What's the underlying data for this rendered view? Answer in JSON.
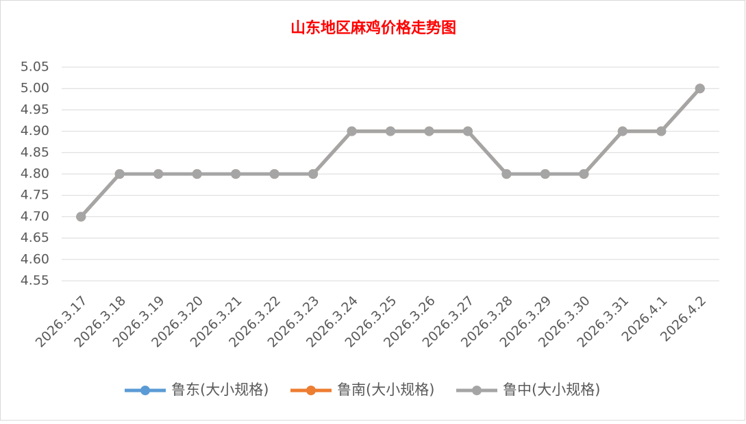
{
  "chart_data": {
    "type": "line",
    "title": "山东地区麻鸡价格走势图",
    "categories": [
      "2026.3.17",
      "2026.3.18",
      "2026.3.19",
      "2026.3.20",
      "2026.3.21",
      "2026.3.22",
      "2026.3.23",
      "2026.3.24",
      "2026.3.25",
      "2026.3.26",
      "2026.3.27",
      "2026.3.28",
      "2026.3.29",
      "2026.3.30",
      "2026.3.31",
      "2026.4.1",
      "2026.4.2"
    ],
    "series": [
      {
        "name": "鲁东(大小规格)",
        "color": "#5b9bd5",
        "values": [
          4.7,
          4.8,
          4.8,
          4.8,
          4.8,
          4.8,
          4.8,
          4.9,
          4.9,
          4.9,
          4.9,
          4.8,
          4.8,
          4.8,
          4.9,
          4.9,
          5.0
        ]
      },
      {
        "name": "鲁南(大小规格)",
        "color": "#ed7d31",
        "values": [
          4.7,
          4.8,
          4.8,
          4.8,
          4.8,
          4.8,
          4.8,
          4.9,
          4.9,
          4.9,
          4.9,
          4.8,
          4.8,
          4.8,
          4.9,
          4.9,
          5.0
        ]
      },
      {
        "name": "鲁中(大小规格)",
        "color": "#a5a5a5",
        "values": [
          4.7,
          4.8,
          4.8,
          4.8,
          4.8,
          4.8,
          4.8,
          4.9,
          4.9,
          4.9,
          4.9,
          4.8,
          4.8,
          4.8,
          4.9,
          4.9,
          5.0
        ]
      }
    ],
    "ylim": [
      4.55,
      5.05
    ],
    "yticks": [
      4.55,
      {
        "value": 4.6,
        "label": "4.60"
      },
      4.65,
      {
        "value": 4.7,
        "label": "4.70"
      },
      4.75,
      {
        "value": 4.8,
        "label": "4.80"
      },
      4.85,
      {
        "value": 4.9,
        "label": "4.90"
      },
      4.95,
      {
        "value": 5.0,
        "label": "5.00"
      },
      5.05
    ],
    "grid": true,
    "legend": "bottom"
  }
}
